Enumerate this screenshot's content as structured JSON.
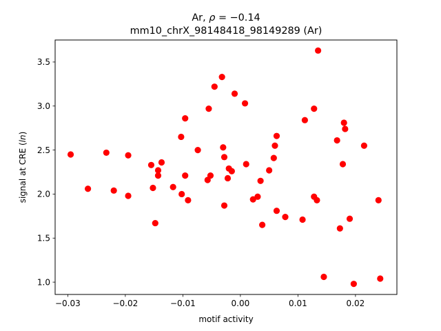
{
  "chart_data": {
    "type": "scatter",
    "title_line1_prefix": "Ar, ",
    "title_line1_rho": "ρ",
    "title_line1_value": " = −0.14",
    "title_line2": "mm10_chrX_98148418_98149289 (Ar)",
    "xlabel": "motif activity",
    "ylabel_prefix": "signal at CRE (",
    "ylabel_italic": "ln",
    "ylabel_suffix": ")",
    "xlim": [
      -0.0322,
      0.0272
    ],
    "ylim": [
      0.86,
      3.75
    ],
    "xticks": [
      -0.03,
      -0.02,
      -0.01,
      0.0,
      0.01,
      0.02
    ],
    "xtick_labels": [
      "−0.03",
      "−0.02",
      "−0.01",
      "0.00",
      "0.01",
      "0.02"
    ],
    "yticks": [
      1.0,
      1.5,
      2.0,
      2.5,
      3.0,
      3.5
    ],
    "ytick_labels": [
      "1.0",
      "1.5",
      "2.0",
      "2.5",
      "3.0",
      "3.5"
    ],
    "grid": false,
    "marker_color": "#ff0000",
    "points": [
      {
        "x": -0.0295,
        "y": 2.45
      },
      {
        "x": -0.0265,
        "y": 2.06
      },
      {
        "x": -0.0233,
        "y": 2.47
      },
      {
        "x": -0.022,
        "y": 2.04
      },
      {
        "x": -0.0195,
        "y": 2.44
      },
      {
        "x": -0.0195,
        "y": 1.98
      },
      {
        "x": -0.0155,
        "y": 2.33
      },
      {
        "x": -0.0152,
        "y": 2.07
      },
      {
        "x": -0.0148,
        "y": 1.67
      },
      {
        "x": -0.0143,
        "y": 2.27
      },
      {
        "x": -0.0143,
        "y": 2.21
      },
      {
        "x": -0.0137,
        "y": 2.36
      },
      {
        "x": -0.0117,
        "y": 2.08
      },
      {
        "x": -0.0103,
        "y": 2.65
      },
      {
        "x": -0.0102,
        "y": 2.0
      },
      {
        "x": -0.0096,
        "y": 2.86
      },
      {
        "x": -0.0096,
        "y": 2.21
      },
      {
        "x": -0.0091,
        "y": 1.93
      },
      {
        "x": -0.0074,
        "y": 2.5
      },
      {
        "x": -0.0057,
        "y": 2.16
      },
      {
        "x": -0.0055,
        "y": 2.97
      },
      {
        "x": -0.0052,
        "y": 2.21
      },
      {
        "x": -0.0045,
        "y": 3.22
      },
      {
        "x": -0.0032,
        "y": 3.33
      },
      {
        "x": -0.003,
        "y": 2.53
      },
      {
        "x": -0.0028,
        "y": 2.42
      },
      {
        "x": -0.0028,
        "y": 1.87
      },
      {
        "x": -0.0022,
        "y": 2.18
      },
      {
        "x": -0.002,
        "y": 2.29
      },
      {
        "x": -0.0015,
        "y": 2.26
      },
      {
        "x": -0.001,
        "y": 3.14
      },
      {
        "x": 0.0008,
        "y": 3.03
      },
      {
        "x": 0.001,
        "y": 2.34
      },
      {
        "x": 0.0022,
        "y": 1.94
      },
      {
        "x": 0.003,
        "y": 1.97
      },
      {
        "x": 0.0035,
        "y": 2.15
      },
      {
        "x": 0.0038,
        "y": 1.65
      },
      {
        "x": 0.005,
        "y": 2.27
      },
      {
        "x": 0.0058,
        "y": 2.41
      },
      {
        "x": 0.006,
        "y": 2.55
      },
      {
        "x": 0.0063,
        "y": 2.66
      },
      {
        "x": 0.0063,
        "y": 1.81
      },
      {
        "x": 0.0078,
        "y": 1.74
      },
      {
        "x": 0.0108,
        "y": 1.71
      },
      {
        "x": 0.0112,
        "y": 2.84
      },
      {
        "x": 0.0128,
        "y": 2.97
      },
      {
        "x": 0.0128,
        "y": 1.97
      },
      {
        "x": 0.0133,
        "y": 1.93
      },
      {
        "x": 0.0135,
        "y": 3.63
      },
      {
        "x": 0.0145,
        "y": 1.06
      },
      {
        "x": 0.0168,
        "y": 2.61
      },
      {
        "x": 0.0173,
        "y": 1.61
      },
      {
        "x": 0.0178,
        "y": 2.34
      },
      {
        "x": 0.018,
        "y": 2.81
      },
      {
        "x": 0.0182,
        "y": 2.74
      },
      {
        "x": 0.019,
        "y": 1.72
      },
      {
        "x": 0.0197,
        "y": 0.98
      },
      {
        "x": 0.0215,
        "y": 2.55
      },
      {
        "x": 0.024,
        "y": 1.93
      },
      {
        "x": 0.0243,
        "y": 1.04
      }
    ]
  }
}
